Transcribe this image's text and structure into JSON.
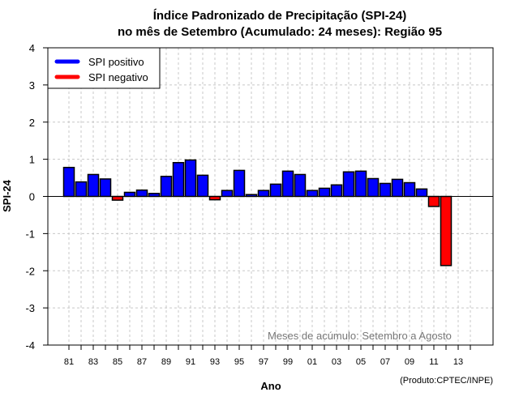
{
  "chart_data": {
    "type": "bar",
    "title": [
      "Índice Padronizado de Precipitação (SPI-24)",
      "no mês de Setembro (Acumulado: 24 meses): Região 95"
    ],
    "xlabel": "Ano",
    "ylabel": "SPI-24",
    "ylim": [
      -4,
      4
    ],
    "yticks": [
      4,
      3,
      2,
      1,
      0,
      -1,
      -2,
      -3,
      -4
    ],
    "xlim": [
      1980,
      2015
    ],
    "xticks_years": [
      1981,
      1983,
      1985,
      1987,
      1989,
      1991,
      1993,
      1995,
      1997,
      1999,
      2001,
      2003,
      2005,
      2007,
      2009,
      2011,
      2013
    ],
    "xtick_labels": [
      "81",
      "83",
      "85",
      "87",
      "89",
      "91",
      "93",
      "95",
      "97",
      "99",
      "01",
      "03",
      "05",
      "07",
      "09",
      "11",
      "13"
    ],
    "grid": true,
    "categories": [
      1981,
      1982,
      1983,
      1984,
      1985,
      1986,
      1987,
      1988,
      1989,
      1990,
      1991,
      1992,
      1993,
      1994,
      1995,
      1996,
      1997,
      1998,
      1999,
      2000,
      2001,
      2002,
      2003,
      2004,
      2005,
      2006,
      2007,
      2008,
      2009,
      2010,
      2011,
      2012
    ],
    "values": [
      0.78,
      0.39,
      0.59,
      0.47,
      -0.1,
      0.11,
      0.17,
      0.08,
      0.54,
      0.91,
      0.98,
      0.57,
      -0.09,
      0.16,
      0.7,
      0.05,
      0.16,
      0.33,
      0.68,
      0.59,
      0.16,
      0.22,
      0.31,
      0.66,
      0.68,
      0.48,
      0.35,
      0.46,
      0.37,
      0.2,
      -0.27,
      -1.86
    ],
    "colors": {
      "positive": "#0000ff",
      "negative": "#ff0000",
      "outline": "#000000",
      "grid": "#c8c8c8",
      "annotation": "#777777"
    },
    "legend": {
      "placement": "top-left",
      "entries": [
        {
          "label": "SPI positivo",
          "color": "#0000ff"
        },
        {
          "label": "SPI negativo",
          "color": "#ff0000"
        }
      ]
    },
    "annotation": "Meses de acúmulo: Setembro a Agosto",
    "credit": "(Produto:CPTEC/INPE)"
  }
}
